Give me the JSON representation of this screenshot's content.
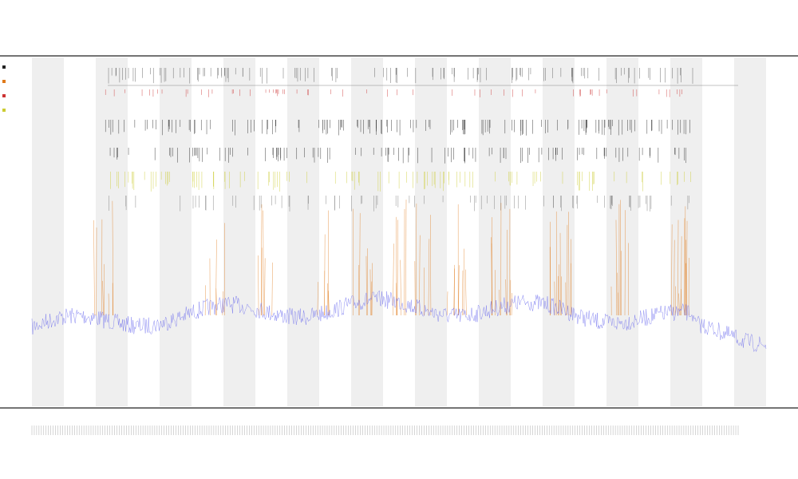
{
  "chart_data": {
    "type": "area",
    "title": "",
    "subtitle_lines": [],
    "xlabel": "",
    "ylabel": "",
    "x_tick_count": 300,
    "band_count": 23,
    "grid": false,
    "legend": {
      "placement": "left",
      "entries": [],
      "colors": [
        "#222222",
        "#e07a1a",
        "#cc3333",
        "#cccc33"
      ]
    },
    "series": [
      {
        "key": "baseline",
        "color": "#6666ee",
        "style": "noisy-line"
      },
      {
        "key": "peaks",
        "color": "#e07a1a",
        "style": "vertical-spikes"
      },
      {
        "key": "marks_black",
        "color": "#222222",
        "style": "tick-rows"
      },
      {
        "key": "marks_yellow",
        "color": "#cccc33",
        "style": "tick-rows"
      },
      {
        "key": "marks_red",
        "color": "#cc3333",
        "style": "tick-rows"
      }
    ],
    "peak_clusters": [
      0.1,
      0.25,
      0.32,
      0.4,
      0.45,
      0.5,
      0.53,
      0.58,
      0.64,
      0.72,
      0.8,
      0.88
    ]
  },
  "colors": {
    "band": "#efefef",
    "axis": "#222222",
    "background": "#ffffff"
  }
}
